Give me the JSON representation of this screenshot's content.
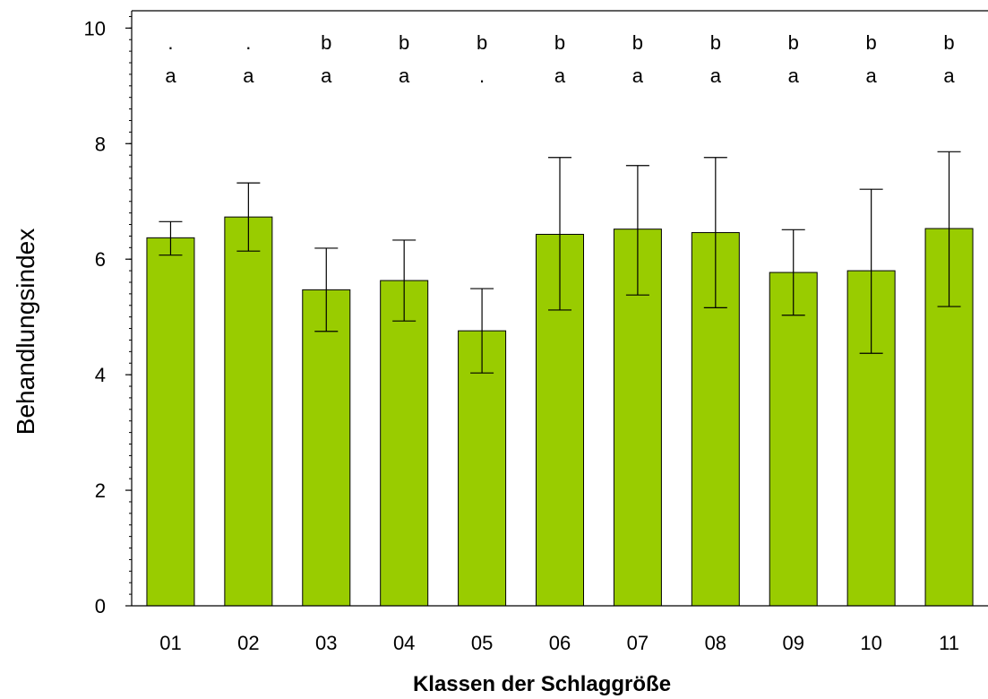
{
  "chart_data": {
    "type": "bar",
    "xlabel": "Klassen der Schlaggröße",
    "ylabel": "Behandlungsindex",
    "ylim": [
      0,
      10.3
    ],
    "yticks": [
      0,
      2,
      4,
      6,
      8,
      10
    ],
    "grid": false,
    "bar_color": "#99cc00",
    "categories": [
      "01",
      "02",
      "03",
      "04",
      "05",
      "06",
      "07",
      "08",
      "09",
      "10",
      "11"
    ],
    "values": [
      6.37,
      6.73,
      5.47,
      5.63,
      4.76,
      6.43,
      6.52,
      6.46,
      5.77,
      5.8,
      6.53
    ],
    "error_low": [
      6.07,
      6.14,
      4.75,
      4.93,
      4.03,
      5.12,
      5.38,
      5.16,
      5.03,
      4.37,
      5.18
    ],
    "error_high": [
      6.65,
      7.32,
      6.19,
      6.33,
      5.49,
      7.76,
      7.62,
      7.76,
      6.51,
      7.21,
      7.86
    ],
    "sig_top": [
      ".",
      ".",
      "b",
      "b",
      "b",
      "b",
      "b",
      "b",
      "b",
      "b",
      "b"
    ],
    "sig_bottom": [
      "a",
      "a",
      "a",
      "a",
      ".",
      "a",
      "a",
      "a",
      "a",
      "a",
      "a"
    ]
  }
}
